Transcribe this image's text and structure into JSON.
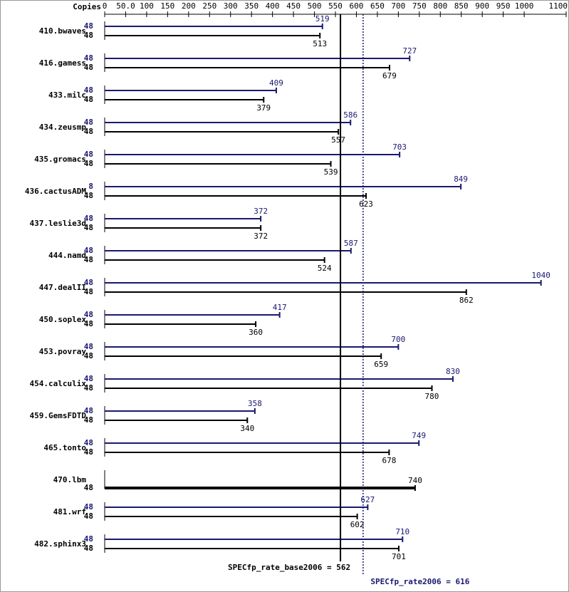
{
  "chart_data": {
    "type": "bar",
    "copies_label": "Copies",
    "categories": [
      "410.bwaves",
      "416.gamess",
      "433.milc",
      "434.zeusmp",
      "435.gromacs",
      "436.cactusADM",
      "437.leslie3d",
      "444.namd",
      "447.dealII",
      "450.soplex",
      "453.povray",
      "454.calculix",
      "459.GemsFDTD",
      "465.tonto",
      "470.lbm",
      "481.wrf",
      "482.sphinx3"
    ],
    "series": [
      {
        "color": "#191970",
        "copies": [
          48,
          48,
          48,
          48,
          48,
          8,
          48,
          48,
          48,
          48,
          48,
          48,
          48,
          48,
          null,
          48,
          48
        ],
        "values": [
          519,
          727,
          409,
          586,
          703,
          849,
          372,
          587,
          1040,
          417,
          700,
          830,
          358,
          749,
          null,
          627,
          710
        ]
      },
      {
        "color": "#000000",
        "copies": [
          48,
          48,
          48,
          48,
          48,
          48,
          48,
          48,
          48,
          48,
          48,
          48,
          48,
          48,
          48,
          48,
          48
        ],
        "values": [
          513,
          679,
          379,
          557,
          539,
          623,
          372,
          524,
          862,
          360,
          659,
          780,
          340,
          678,
          740,
          602,
          701
        ]
      }
    ],
    "xlim": [
      0,
      1100
    ],
    "xticks": [
      0,
      {
        "value": 50,
        "label": "50.0"
      },
      100,
      150,
      200,
      250,
      300,
      350,
      400,
      450,
      500,
      550,
      600,
      650,
      700,
      750,
      800,
      850,
      900,
      950,
      1000,
      1100
    ],
    "reference_lines": [
      {
        "label": "SPECfp_rate_base2006 = 562",
        "value": 562,
        "color": "#000000",
        "dashed": false
      },
      {
        "label": "SPECfp_rate2006 = 616",
        "value": 616,
        "color": "#191970",
        "dashed": true
      }
    ]
  }
}
